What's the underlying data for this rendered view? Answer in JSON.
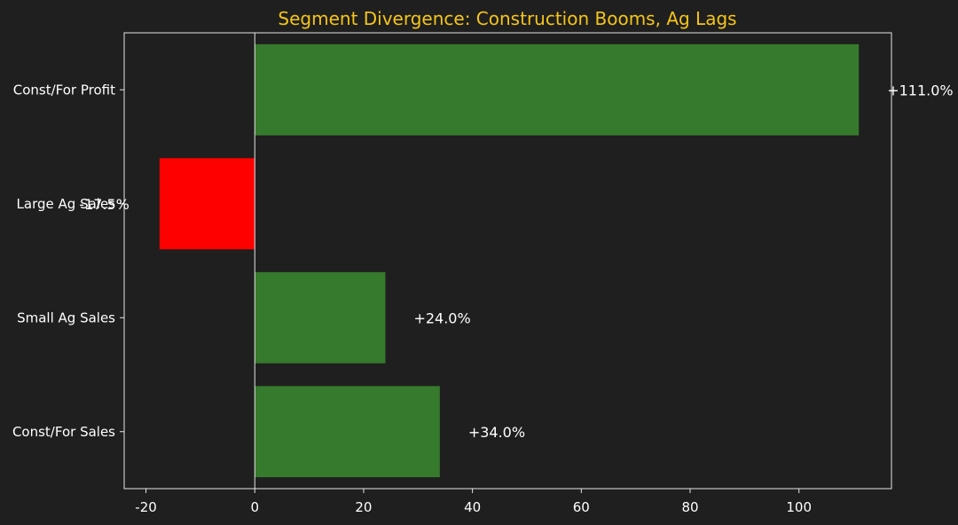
{
  "chart_data": {
    "type": "bar",
    "orientation": "horizontal",
    "title": "Segment Divergence: Construction Booms, Ag Lags",
    "xlabel": "",
    "ylabel": "",
    "categories": [
      "Const/For Profit",
      "Large Ag Sales",
      "Small Ag Sales",
      "Const/For Sales"
    ],
    "values": [
      111.0,
      -17.5,
      24.0,
      34.0
    ],
    "data_labels": [
      "+111.0%",
      "-17.5%",
      "+24.0%",
      "+34.0%"
    ],
    "xlim": [
      -24,
      117
    ],
    "xticks": [
      -20,
      0,
      20,
      40,
      60,
      80,
      100
    ],
    "grid": false,
    "colors": {
      "positive": "#367a2d",
      "negative": "#ff0000",
      "background": "#1f1f1f",
      "axis": "#e6e6e6",
      "text": "#ffffff",
      "title": "#f5c518"
    }
  }
}
